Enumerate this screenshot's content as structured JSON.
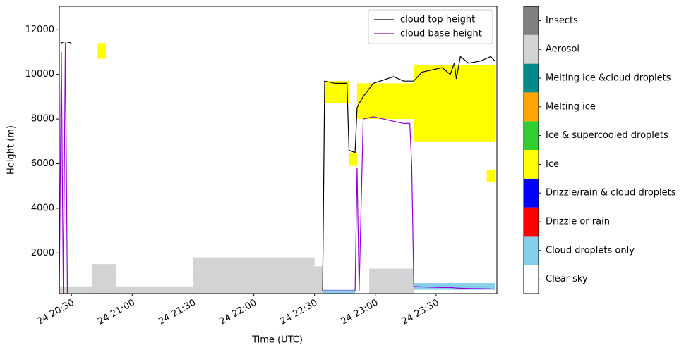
{
  "chart_data": {
    "type": "line",
    "x_label": "Time (UTC)",
    "y_label": "Height (m)",
    "xlim": [
      "24 20:24",
      "25 00:00"
    ],
    "xticks": [
      "24 20:30",
      "24 21:00",
      "24 21:30",
      "24 22:00",
      "24 22:30",
      "24 23:00",
      "24 23:30"
    ],
    "ylim": [
      180,
      13050
    ],
    "yticks": [
      2000,
      4000,
      6000,
      8000,
      10000,
      12000
    ],
    "legend": "upper right",
    "x": [
      "24 20:24",
      "24 20:25",
      "24 20:26",
      "24 20:27",
      "24 20:28",
      "24 20:30",
      "24 20:31",
      "24 22:34",
      "24 22:35",
      "24 22:40",
      "24 22:46",
      "24 22:47",
      "24 22:50",
      "24 22:51",
      "24 22:52",
      "24 22:54",
      "24 22:59",
      "24 23:09",
      "24 23:14",
      "24 23:17",
      "24 23:18",
      "24 23:19",
      "24 23:23",
      "24 23:33",
      "24 23:37",
      "24 23:39",
      "24 23:40",
      "24 23:42",
      "24 23:46",
      "24 23:52",
      "24 23:57",
      "24 23:59"
    ],
    "series": [
      {
        "name": "cloud top height",
        "color": "#000000",
        "values": [
          null,
          11400,
          11450,
          11450,
          11450,
          11400,
          null,
          300,
          9700,
          9600,
          9600,
          6600,
          6500,
          8500,
          8700,
          9000,
          9600,
          9900,
          9700,
          9700,
          9700,
          9700,
          10100,
          10300,
          10000,
          10500,
          9800,
          10800,
          10500,
          10600,
          10800,
          10600
        ]
      },
      {
        "name": "cloud base height",
        "color": "#9400d3",
        "values": [
          200,
          11000,
          200,
          11400,
          200,
          null,
          null,
          300,
          300,
          300,
          300,
          300,
          300,
          5800,
          300,
          8000,
          8100,
          7900,
          7800,
          7800,
          5900,
          500,
          480,
          450,
          450,
          440,
          430,
          420,
          410,
          400,
          390,
          380
        ]
      }
    ],
    "classes": [
      {
        "name": "Clear sky",
        "color": "#ffffff"
      },
      {
        "name": "Cloud droplets only",
        "color": "#87ceeb"
      },
      {
        "name": "Drizzle or rain",
        "color": "#ff0000"
      },
      {
        "name": "Drizzle/rain & cloud droplets",
        "color": "#0000ff"
      },
      {
        "name": "Ice",
        "color": "#ffff00"
      },
      {
        "name": "Ice & supercooled droplets",
        "color": "#32cd32"
      },
      {
        "name": "Melting ice",
        "color": "#ffa500"
      },
      {
        "name": "Melting ice &cloud droplets",
        "color": "#008b8b"
      },
      {
        "name": "Aerosol",
        "color": "#d3d3d3"
      },
      {
        "name": "Insects",
        "color": "#808080"
      }
    ],
    "class_regions": [
      {
        "class": 8,
        "x": [
          "24 20:24",
          "24 21:30"
        ],
        "y": [
          200,
          500
        ]
      },
      {
        "class": 8,
        "x": [
          "24 20:40",
          "24 20:52"
        ],
        "y": [
          200,
          1500
        ]
      },
      {
        "class": 8,
        "x": [
          "24 21:30",
          "24 22:34"
        ],
        "y": [
          200,
          1400
        ]
      },
      {
        "class": 8,
        "x": [
          "24 21:30",
          "24 22:30"
        ],
        "y": [
          1400,
          1800
        ]
      },
      {
        "class": 8,
        "x": [
          "24 22:57",
          "24 23:19"
        ],
        "y": [
          200,
          1300
        ]
      },
      {
        "class": 1,
        "x": [
          "24 22:34",
          "24 22:50"
        ],
        "y": [
          200,
          350
        ]
      },
      {
        "class": 1,
        "x": [
          "24 23:19",
          "24 23:59"
        ],
        "y": [
          350,
          650
        ]
      },
      {
        "class": 4,
        "x": [
          "24 20:43",
          "24 20:47"
        ],
        "y": [
          10700,
          11400
        ]
      },
      {
        "class": 4,
        "x": [
          "24 22:35",
          "24 22:47"
        ],
        "y": [
          8700,
          9700
        ]
      },
      {
        "class": 4,
        "x": [
          "24 22:47",
          "24 22:51"
        ],
        "y": [
          5900,
          6500
        ]
      },
      {
        "class": 4,
        "x": [
          "24 22:51",
          "24 23:19"
        ],
        "y": [
          8000,
          9600
        ]
      },
      {
        "class": 4,
        "x": [
          "24 23:19",
          "24 23:59"
        ],
        "y": [
          7000,
          10400
        ]
      },
      {
        "class": 4,
        "x": [
          "24 23:55",
          "24 23:59"
        ],
        "y": [
          5200,
          5700
        ]
      }
    ]
  }
}
